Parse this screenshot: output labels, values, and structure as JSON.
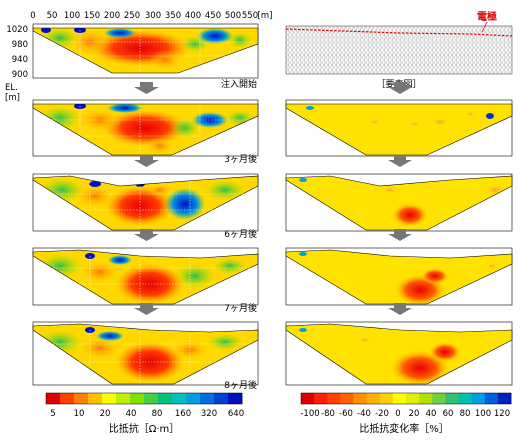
{
  "header": {
    "x_unit": "[m]",
    "x_ticks": [
      "0",
      "50",
      "100",
      "150",
      "200",
      "250",
      "300",
      "350",
      "400",
      "450",
      "500",
      "550"
    ],
    "y_ticks": [
      "1020",
      "980",
      "940",
      "900"
    ],
    "el_label": "EL.",
    "el_unit": "[m]"
  },
  "left_panels": [
    {
      "caption": "注入開始"
    },
    {
      "caption": "3ヶ月後"
    },
    {
      "caption": "6ヶ月後"
    },
    {
      "caption": "7ヶ月後"
    },
    {
      "caption": "8ヶ月後"
    }
  ],
  "mesh": {
    "electrode_label": "電極",
    "caption": "［要素図］"
  },
  "left_colorbar": {
    "ticks": [
      "5",
      "10",
      "20",
      "40",
      "80",
      "160",
      "320",
      "640"
    ],
    "title": "比抵抗［Ω·m］",
    "colors": [
      "#e00000",
      "#ff4000",
      "#ff8000",
      "#ffc000",
      "#ffff00",
      "#c0f000",
      "#80e000",
      "#40d040",
      "#00c080",
      "#00c0c0",
      "#00a0e0",
      "#0070e0",
      "#0040d0",
      "#0010c0"
    ]
  },
  "right_colorbar": {
    "ticks": [
      "-100",
      "-80",
      "-60",
      "-40",
      "-20",
      "0",
      "20",
      "40",
      "60",
      "80",
      "100",
      "120"
    ],
    "title": "比抵抗変化率［%］",
    "colors": [
      "#e00000",
      "#ff2000",
      "#ff4000",
      "#ff6000",
      "#ff9000",
      "#ffb000",
      "#ffd000",
      "#ffff00",
      "#e0f000",
      "#b0e000",
      "#70d040",
      "#30c070",
      "#00c0b0",
      "#00a0e0",
      "#0060e0",
      "#0020c0"
    ]
  }
}
